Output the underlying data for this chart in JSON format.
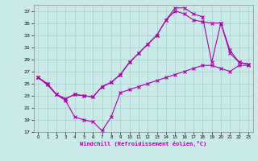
{
  "xlabel": "Windchill (Refroidissement éolien,°C)",
  "bg_color": "#caeaea",
  "line_color": "#aa00aa",
  "grid_color": "#aacccc",
  "ylim": [
    17,
    38
  ],
  "yticks": [
    17,
    19,
    21,
    23,
    25,
    27,
    29,
    31,
    33,
    35,
    37
  ],
  "xlim": [
    -0.5,
    23.5
  ],
  "xticks": [
    0,
    1,
    2,
    3,
    4,
    5,
    6,
    7,
    8,
    9,
    10,
    11,
    12,
    13,
    14,
    15,
    16,
    17,
    18,
    19,
    20,
    21,
    22,
    23
  ],
  "line1_x": [
    0,
    1,
    2,
    3,
    4,
    5,
    6,
    7,
    8,
    9,
    10,
    11,
    12,
    13,
    14,
    15,
    16,
    17,
    18,
    19,
    20,
    21,
    22,
    23
  ],
  "line1_y": [
    26.0,
    24.8,
    23.2,
    22.2,
    19.5,
    19.0,
    18.7,
    17.2,
    19.5,
    23.5,
    24.0,
    24.5,
    25.0,
    25.5,
    26.0,
    26.5,
    27.0,
    27.5,
    28.0,
    28.0,
    27.5,
    27.0,
    28.0,
    28.0
  ],
  "line2_x": [
    0,
    1,
    2,
    3,
    4,
    5,
    6,
    7,
    8,
    9,
    10,
    11,
    12,
    13,
    14,
    15,
    16,
    17,
    18,
    19,
    20,
    21,
    22,
    23
  ],
  "line2_y": [
    26.0,
    25.0,
    23.2,
    22.5,
    23.2,
    23.0,
    22.8,
    24.5,
    25.2,
    26.5,
    28.5,
    30.0,
    31.5,
    33.0,
    35.5,
    37.0,
    36.5,
    35.5,
    35.2,
    35.0,
    35.0,
    30.0,
    28.5,
    28.2
  ],
  "line3_x": [
    0,
    1,
    2,
    3,
    4,
    5,
    6,
    7,
    8,
    9,
    10,
    11,
    12,
    13,
    14,
    15,
    16,
    17,
    18,
    19,
    20,
    21,
    22,
    23
  ],
  "line3_y": [
    26.0,
    25.0,
    23.2,
    22.5,
    23.2,
    23.0,
    22.8,
    24.5,
    25.2,
    26.5,
    28.5,
    30.0,
    31.5,
    33.0,
    35.5,
    37.5,
    37.5,
    36.5,
    36.0,
    28.5,
    35.0,
    30.5,
    28.5,
    28.2
  ]
}
